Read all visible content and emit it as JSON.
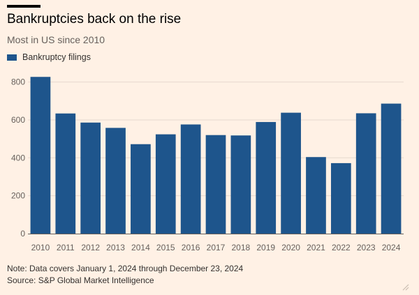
{
  "header": {
    "title": "Bankruptcies back on the rise",
    "subtitle": "Most in US since 2010"
  },
  "footer": {
    "note": "Note: Data covers January 1, 2024 through December 23, 2024",
    "source": "Source: S&P Global Market Intelligence"
  },
  "colors": {
    "bar": "#1e558c",
    "background": "#fff1e5",
    "gridline": "#e6d9ce",
    "axis": "#66605c"
  },
  "chart_data": {
    "type": "bar",
    "title": "Bankruptcies back on the rise",
    "subtitle": "Most in US since 2010",
    "categories": [
      "2010",
      "2011",
      "2012",
      "2013",
      "2014",
      "2015",
      "2016",
      "2017",
      "2018",
      "2019",
      "2020",
      "2021",
      "2022",
      "2023",
      "2024"
    ],
    "series": [
      {
        "name": "Bankruptcy filings",
        "values": [
          827,
          634,
          586,
          558,
          472,
          524,
          576,
          520,
          518,
          589,
          638,
          404,
          372,
          635,
          686
        ]
      }
    ],
    "ylim": [
      0,
      850
    ],
    "yticks": [
      0,
      200,
      400,
      600,
      800
    ],
    "grid": true,
    "legend_position": "top-left"
  }
}
